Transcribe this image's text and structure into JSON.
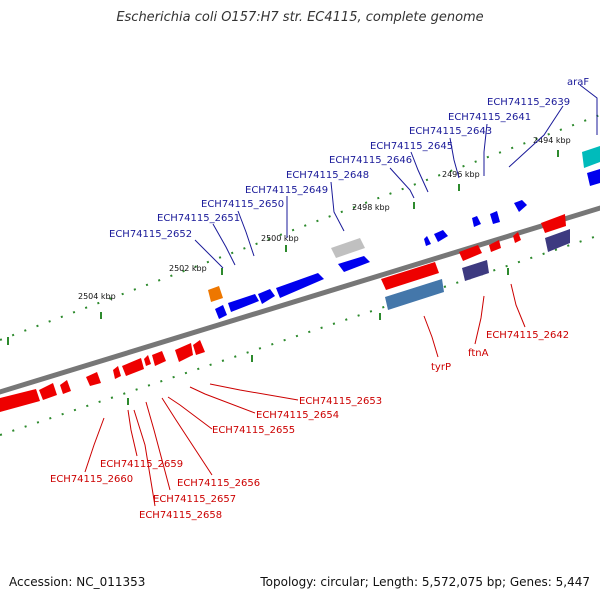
{
  "title": "Escherichia coli O157:H7 str. EC4115, complete genome",
  "accession_line": "Accession: NC_011353",
  "topology_line": "Topology: circular; Length: 5,572,075 bp; Genes: 5,447",
  "colors": {
    "backbone": "#808080",
    "tick": "#2d8a2d",
    "forward_gene": "#0000ee",
    "reverse_gene": "#ee0000",
    "forward_label": "#1a1a99",
    "reverse_label": "#cc0000",
    "gray_gene": "#c0c0c0",
    "orange_gene": "#ee7700",
    "cyan_gene": "#00bbbb",
    "steelblue_gene": "#4477aa",
    "slate_gene": "#3d3a80"
  },
  "kbp_labels": {
    "k2494": "2494 kbp",
    "k2496": "2496 kbp",
    "k2498": "2498 kbp",
    "k2500": "2500 kbp",
    "k2502": "2502 kbp",
    "k2504": "2504 kbp"
  },
  "gene_labels": {
    "araF": "araF",
    "g2639": "ECH74115_2639",
    "g2641": "ECH74115_2641",
    "g2643": "ECH74115_2643",
    "g2645": "ECH74115_2645",
    "g2646": "ECH74115_2646",
    "g2648": "ECH74115_2648",
    "g2649": "ECH74115_2649",
    "g2650": "ECH74115_2650",
    "g2651": "ECH74115_2651",
    "g2652": "ECH74115_2652",
    "g2642": "ECH74115_2642",
    "ftnA": "ftnA",
    "tyrP": "tyrP",
    "g2653": "ECH74115_2653",
    "g2654": "ECH74115_2654",
    "g2655": "ECH74115_2655",
    "g2656": "ECH74115_2656",
    "g2657": "ECH74115_2657",
    "g2658": "ECH74115_2658",
    "g2659": "ECH74115_2659",
    "g2660": "ECH74115_2660"
  }
}
